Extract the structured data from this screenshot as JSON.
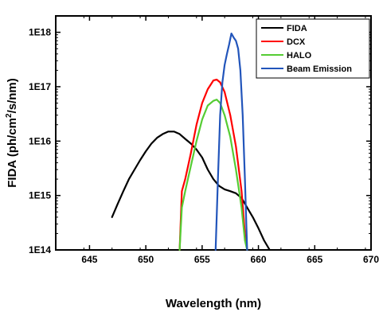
{
  "chart_data": {
    "type": "line",
    "xlabel": "Wavelength (nm)",
    "ylabel_parts": [
      "FIDA (ph/cm",
      "2",
      "/s/nm)"
    ],
    "xlim": [
      642,
      670
    ],
    "ylim": [
      100000000000000.0,
      2e+18
    ],
    "y_scale": "log",
    "x_ticks": [
      645,
      650,
      655,
      660,
      665,
      670
    ],
    "x_tick_labels": [
      "645",
      "650",
      "655",
      "660",
      "665",
      "670"
    ],
    "y_ticks": [
      100000000000000.0,
      1000000000000000.0,
      1e+16,
      1e+17,
      1e+18
    ],
    "y_tick_labels": [
      "1E14",
      "1E15",
      "1E16",
      "1E17",
      "1E18"
    ],
    "legend_position": "top-right",
    "series": [
      {
        "name": "FIDA",
        "color": "#000000",
        "x": [
          647.0,
          647.5,
          648.0,
          648.5,
          649.0,
          649.5,
          650.0,
          650.5,
          651.0,
          651.5,
          652.0,
          652.5,
          653.0,
          653.5,
          654.0,
          654.5,
          655.0,
          655.5,
          656.0,
          656.5,
          657.0,
          657.5,
          658.0,
          658.5,
          659.0,
          659.5,
          660.0,
          660.5,
          661.0
        ],
        "y": [
          400000000000000.0,
          700000000000000.0,
          1200000000000000.0,
          2000000000000000.0,
          3000000000000000.0,
          4500000000000000.0,
          6500000000000000.0,
          9000000000000000.0,
          1.15e+16,
          1.35e+16,
          1.5e+16,
          1.5e+16,
          1.35e+16,
          1.1e+16,
          9000000000000000.0,
          7000000000000000.0,
          5000000000000000.0,
          3000000000000000.0,
          2000000000000000.0,
          1500000000000000.0,
          1300000000000000.0,
          1200000000000000.0,
          1100000000000000.0,
          900000000000000.0,
          600000000000000.0,
          400000000000000.0,
          250000000000000.0,
          150000000000000.0,
          100000000000000.0
        ]
      },
      {
        "name": "DCX",
        "color": "#ff0000",
        "x": [
          653.0,
          653.2,
          653.5,
          654.0,
          654.5,
          655.0,
          655.5,
          656.0,
          656.3,
          656.6,
          657.0,
          657.5,
          658.0,
          658.5,
          658.8,
          659.0
        ],
        "y": [
          100000000000000.0,
          1200000000000000.0,
          2000000000000000.0,
          6000000000000000.0,
          2e+16,
          5e+16,
          9e+16,
          1.3e+17,
          1.35e+17,
          1.2e+17,
          8e+16,
          3e+16,
          8000000000000000.0,
          1200000000000000.0,
          200000000000000.0,
          100000000000000.0
        ]
      },
      {
        "name": "HALO",
        "color": "#55cc33",
        "x": [
          653.0,
          653.2,
          653.5,
          654.0,
          654.5,
          655.0,
          655.5,
          656.0,
          656.3,
          656.6,
          657.0,
          657.5,
          658.0,
          658.5,
          658.8,
          659.0
        ],
        "y": [
          100000000000000.0,
          600000000000000.0,
          1200000000000000.0,
          3500000000000000.0,
          1e+16,
          2.5e+16,
          4.5e+16,
          5.5e+16,
          5.8e+16,
          5e+16,
          3e+16,
          1.2e+16,
          3000000000000000.0,
          600000000000000.0,
          150000000000000.0,
          100000000000000.0
        ]
      },
      {
        "name": "Beam Emission",
        "color": "#2255bb",
        "x": [
          656.2,
          656.4,
          656.6,
          656.8,
          657.0,
          657.2,
          657.4,
          657.6,
          657.8,
          658.0,
          658.2,
          658.4,
          658.6,
          658.8,
          659.0
        ],
        "y": [
          100000000000000.0,
          2000000000000000.0,
          3e+16,
          1.2e+17,
          2.5e+17,
          4e+17,
          6e+17,
          9.5e+17,
          8e+17,
          7e+17,
          5e+17,
          2e+17,
          3e+16,
          2000000000000000.0,
          100000000000000.0
        ]
      }
    ]
  }
}
